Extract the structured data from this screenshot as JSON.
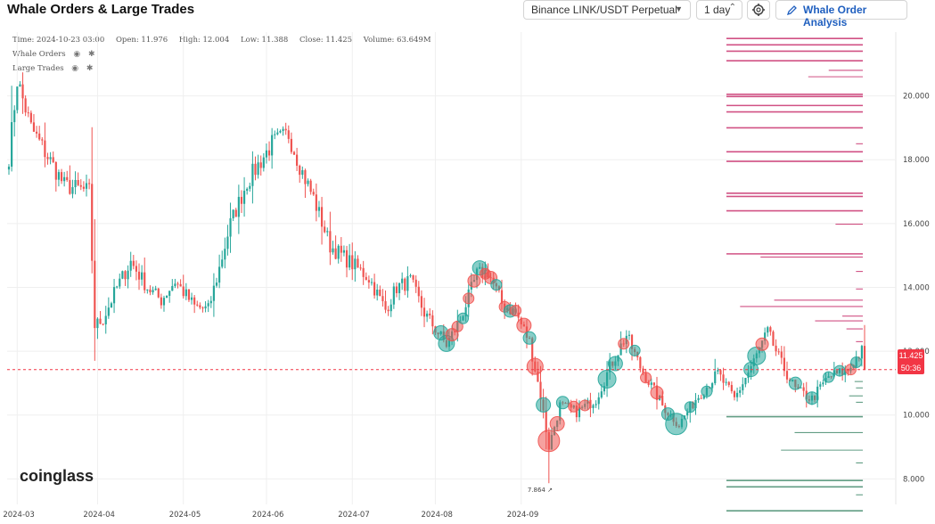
{
  "header": {
    "title": "Whale Orders & Large Trades",
    "symbol_select": "Binance LINK/USDT Perpetual",
    "interval_select": "1 day",
    "analysis_button": "Whale Order Analysis"
  },
  "ohlc": {
    "time": "Time: 2024-10-23 03:00",
    "open": "Open: 11.976",
    "high": "High: 12.004",
    "low": "Low: 11.388",
    "close": "Close: 11.425",
    "volume": "Volume: 63.649M"
  },
  "legend": {
    "whale_orders": "Whale Orders",
    "large_trades": "Large Trades"
  },
  "watermark": "coinglass",
  "price_tag": {
    "price": "11.425",
    "countdown": "50:36"
  },
  "colors": {
    "up": "#26a69a",
    "down": "#ef5350",
    "whale_sell": "#c2185b",
    "whale_buy": "#2e7d5b"
  },
  "chart_data": {
    "type": "candlestick",
    "y_ticks": [
      "8.000",
      "10.000",
      "12.000",
      "14.000",
      "16.000",
      "18.000",
      "20.000"
    ],
    "y_tick_values": [
      8,
      10,
      12,
      14,
      16,
      18,
      20
    ],
    "x_ticks": [
      "2024-03",
      "2024-04",
      "2024-05",
      "2024-06",
      "2024-07",
      "2024-08",
      "2024-09"
    ],
    "ylim": [
      7.2,
      22.0
    ],
    "current_price": 11.425,
    "low_annotation": "7.864",
    "grid": true,
    "key_points": [
      [
        0,
        18.1
      ],
      [
        3,
        20.5
      ],
      [
        8,
        19.0
      ],
      [
        20,
        17.2
      ],
      [
        29,
        17.0
      ],
      [
        31,
        12.8
      ],
      [
        34,
        13.0
      ],
      [
        39,
        14.0
      ],
      [
        44,
        14.8
      ],
      [
        50,
        14.0
      ],
      [
        55,
        13.6
      ],
      [
        60,
        14.2
      ],
      [
        67,
        13.4
      ],
      [
        72,
        13.3
      ],
      [
        76,
        14.6
      ],
      [
        80,
        16.0
      ],
      [
        86,
        17.3
      ],
      [
        95,
        18.5
      ],
      [
        101,
        18.8
      ],
      [
        106,
        17.6
      ],
      [
        110,
        16.8
      ],
      [
        116,
        15.3
      ],
      [
        123,
        14.8
      ],
      [
        130,
        14.3
      ],
      [
        136,
        13.3
      ],
      [
        140,
        14.0
      ],
      [
        145,
        14.2
      ],
      [
        150,
        13.2
      ],
      [
        154,
        12.7
      ],
      [
        158,
        12.2
      ],
      [
        163,
        13.0
      ],
      [
        169,
        14.4
      ],
      [
        173,
        14.5
      ],
      [
        178,
        13.5
      ],
      [
        183,
        13.2
      ],
      [
        188,
        12.3
      ],
      [
        192,
        10.6
      ],
      [
        195,
        9.0
      ],
      [
        199,
        10.3
      ],
      [
        205,
        10.1
      ],
      [
        212,
        10.5
      ],
      [
        217,
        11.5
      ],
      [
        223,
        12.5
      ],
      [
        228,
        11.5
      ],
      [
        236,
        10.3
      ],
      [
        242,
        9.7
      ],
      [
        248,
        10.5
      ],
      [
        256,
        11.3
      ],
      [
        262,
        10.5
      ],
      [
        268,
        11.5
      ],
      [
        274,
        12.6
      ],
      [
        279,
        11.6
      ],
      [
        284,
        10.8
      ],
      [
        290,
        10.5
      ],
      [
        296,
        11.2
      ],
      [
        303,
        11.4
      ],
      [
        308,
        12.0
      ]
    ],
    "large_trades": [
      {
        "i": 156,
        "side": "buy",
        "r": 8
      },
      {
        "i": 158,
        "side": "buy",
        "r": 9
      },
      {
        "i": 160,
        "side": "sell",
        "r": 7
      },
      {
        "i": 162,
        "side": "sell",
        "r": 6
      },
      {
        "i": 164,
        "side": "buy",
        "r": 6
      },
      {
        "i": 166,
        "side": "sell",
        "r": 6
      },
      {
        "i": 168,
        "side": "sell",
        "r": 7
      },
      {
        "i": 170,
        "side": "buy",
        "r": 8
      },
      {
        "i": 172,
        "side": "sell",
        "r": 6
      },
      {
        "i": 174,
        "side": "sell",
        "r": 7
      },
      {
        "i": 176,
        "side": "buy",
        "r": 6
      },
      {
        "i": 179,
        "side": "sell",
        "r": 6
      },
      {
        "i": 181,
        "side": "buy",
        "r": 7
      },
      {
        "i": 183,
        "side": "sell",
        "r": 6
      },
      {
        "i": 186,
        "side": "sell",
        "r": 8
      },
      {
        "i": 188,
        "side": "buy",
        "r": 7
      },
      {
        "i": 190,
        "side": "sell",
        "r": 9
      },
      {
        "i": 193,
        "side": "buy",
        "r": 8
      },
      {
        "i": 195,
        "side": "sell",
        "r": 12
      },
      {
        "i": 198,
        "side": "sell",
        "r": 8
      },
      {
        "i": 200,
        "side": "buy",
        "r": 7
      },
      {
        "i": 204,
        "side": "sell",
        "r": 6
      },
      {
        "i": 208,
        "side": "sell",
        "r": 6
      },
      {
        "i": 216,
        "side": "buy",
        "r": 10
      },
      {
        "i": 219,
        "side": "buy",
        "r": 8
      },
      {
        "i": 222,
        "side": "sell",
        "r": 6
      },
      {
        "i": 226,
        "side": "buy",
        "r": 6
      },
      {
        "i": 230,
        "side": "sell",
        "r": 6
      },
      {
        "i": 234,
        "side": "sell",
        "r": 7
      },
      {
        "i": 238,
        "side": "buy",
        "r": 7
      },
      {
        "i": 241,
        "side": "buy",
        "r": 12
      },
      {
        "i": 246,
        "side": "buy",
        "r": 6
      },
      {
        "i": 252,
        "side": "buy",
        "r": 6
      },
      {
        "i": 268,
        "side": "buy",
        "r": 8
      },
      {
        "i": 270,
        "side": "buy",
        "r": 10
      },
      {
        "i": 272,
        "side": "sell",
        "r": 7
      },
      {
        "i": 284,
        "side": "buy",
        "r": 7
      },
      {
        "i": 290,
        "side": "buy",
        "r": 7
      },
      {
        "i": 296,
        "side": "buy",
        "r": 6
      },
      {
        "i": 300,
        "side": "buy",
        "r": 6
      },
      {
        "i": 304,
        "side": "sell",
        "r": 6
      },
      {
        "i": 306,
        "side": "buy",
        "r": 6
      }
    ],
    "whale_orders": [
      {
        "price": 21.8,
        "side": "sell",
        "len": 1.0
      },
      {
        "price": 21.6,
        "side": "sell",
        "len": 1.0
      },
      {
        "price": 21.4,
        "side": "sell",
        "len": 1.0
      },
      {
        "price": 21.1,
        "side": "sell",
        "len": 1.0
      },
      {
        "price": 20.8,
        "side": "sell",
        "len": 0.25
      },
      {
        "price": 20.6,
        "side": "sell",
        "len": 0.4
      },
      {
        "price": 20.05,
        "side": "sell",
        "len": 1.0
      },
      {
        "price": 19.98,
        "side": "sell",
        "len": 1.0
      },
      {
        "price": 19.7,
        "side": "sell",
        "len": 1.0
      },
      {
        "price": 19.5,
        "side": "sell",
        "len": 1.0
      },
      {
        "price": 19.0,
        "side": "sell",
        "len": 1.0
      },
      {
        "price": 18.5,
        "side": "sell",
        "len": 0.05
      },
      {
        "price": 18.25,
        "side": "sell",
        "len": 1.0
      },
      {
        "price": 17.95,
        "side": "sell",
        "len": 1.0
      },
      {
        "price": 16.95,
        "side": "sell",
        "len": 1.0
      },
      {
        "price": 16.85,
        "side": "sell",
        "len": 1.0
      },
      {
        "price": 16.4,
        "side": "sell",
        "len": 1.0
      },
      {
        "price": 15.98,
        "side": "sell",
        "len": 0.2
      },
      {
        "price": 15.05,
        "side": "sell",
        "len": 1.0
      },
      {
        "price": 14.95,
        "side": "sell",
        "len": 0.75
      },
      {
        "price": 14.5,
        "side": "sell",
        "len": 0.05
      },
      {
        "price": 13.95,
        "side": "sell",
        "len": 0.05
      },
      {
        "price": 13.6,
        "side": "sell",
        "len": 0.65
      },
      {
        "price": 13.4,
        "side": "sell",
        "len": 0.9
      },
      {
        "price": 13.1,
        "side": "sell",
        "len": 0.15
      },
      {
        "price": 12.95,
        "side": "sell",
        "len": 0.35
      },
      {
        "price": 12.7,
        "side": "sell",
        "len": 0.12
      },
      {
        "price": 12.3,
        "side": "sell",
        "len": 0.05
      },
      {
        "price": 11.05,
        "side": "buy",
        "len": 0.06
      },
      {
        "price": 10.85,
        "side": "buy",
        "len": 0.05
      },
      {
        "price": 10.6,
        "side": "buy",
        "len": 0.1
      },
      {
        "price": 10.4,
        "side": "buy",
        "len": 0.05
      },
      {
        "price": 9.95,
        "side": "buy",
        "len": 1.0
      },
      {
        "price": 9.45,
        "side": "buy",
        "len": 0.5
      },
      {
        "price": 8.9,
        "side": "buy",
        "len": 0.6
      },
      {
        "price": 8.5,
        "side": "buy",
        "len": 0.05
      },
      {
        "price": 7.95,
        "side": "buy",
        "len": 1.0
      },
      {
        "price": 7.75,
        "side": "buy",
        "len": 1.0
      },
      {
        "price": 7.5,
        "side": "buy",
        "len": 0.05
      },
      {
        "price": 7.0,
        "side": "buy",
        "len": 1.0
      }
    ]
  }
}
